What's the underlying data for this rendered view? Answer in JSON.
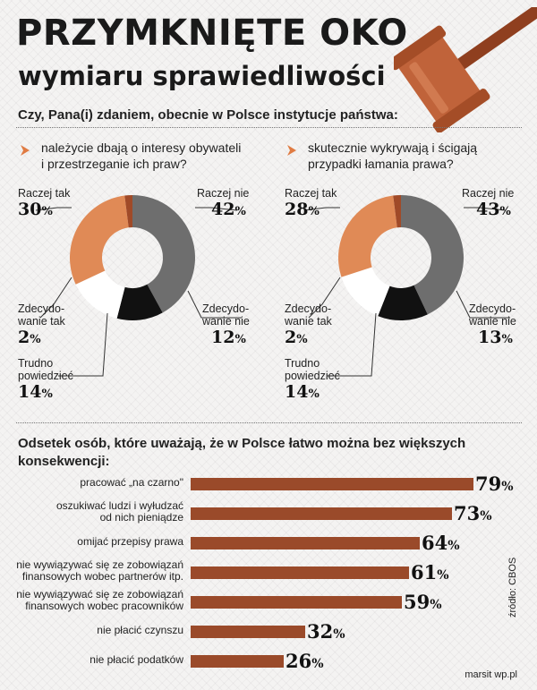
{
  "title_line1": "PRZYMKNIĘTE OKO",
  "title_line2": "wymiaru sprawiedliwości",
  "question": "Czy, Pana(i) zdaniem, obecnie w Polsce instytucje państwa:",
  "icons": {
    "chevron": "chevron-right-icon",
    "gavel": "gavel-icon"
  },
  "colors": {
    "orange": "#e08a56",
    "dark_gray": "#6e6e6e",
    "black": "#111111",
    "white": "#ffffff",
    "brown_mark": "#a04a28",
    "bar": "#9a4a2a"
  },
  "chart_data": [
    {
      "type": "pie",
      "subtitle": "należycie dbają o interesy obywateli\ni przestrzeganie ich praw?",
      "slices": [
        {
          "label": "Raczej nie",
          "value": 42
        },
        {
          "label": "Zdecydowanie nie",
          "value": 12
        },
        {
          "label": "Trudno powiedzieć",
          "value": 14
        },
        {
          "label": "Raczej tak",
          "value": 30
        },
        {
          "label": "Zdecydowanie tak",
          "value": 2
        }
      ],
      "labels": {
        "raczej_tak": "Raczej tak",
        "raczej_nie": "Raczej nie",
        "zdec_tak": "Zdecydo-\nwanie tak",
        "zdec_nie": "Zdecydo-\nwanie nie",
        "trudno": "Trudno\npowiedzieć"
      },
      "values": {
        "raczej_tak": "30",
        "raczej_nie": "42",
        "zdec_tak": "2",
        "zdec_nie": "12",
        "trudno": "14"
      }
    },
    {
      "type": "pie",
      "subtitle": "skutecznie wykrywają i ścigają\nprzypadki łamania prawa?",
      "slices": [
        {
          "label": "Raczej nie",
          "value": 43
        },
        {
          "label": "Zdecydowanie nie",
          "value": 13
        },
        {
          "label": "Trudno powiedzieć",
          "value": 14
        },
        {
          "label": "Raczej tak",
          "value": 28
        },
        {
          "label": "Zdecydowanie tak",
          "value": 2
        }
      ],
      "labels": {
        "raczej_tak": "Raczej tak",
        "raczej_nie": "Raczej nie",
        "zdec_tak": "Zdecydo-\nwanie tak",
        "zdec_nie": "Zdecydo-\nwanie nie",
        "trudno": "Trudno\npowiedzieć"
      },
      "values": {
        "raczej_tak": "28",
        "raczej_nie": "43",
        "zdec_tak": "2",
        "zdec_nie": "13",
        "trudno": "14"
      }
    },
    {
      "type": "bar",
      "title": "Odsetek osób, które uważają, że w Polsce łatwo można bez większych konsekwencji:",
      "categories": [
        "pracować „na czarno\"",
        "oszukiwać ludzi i wyłudzać\nod nich pieniądze",
        "omijać przepisy prawa",
        "nie wywiązywać się ze zobowiązań\nfinansowych wobec partnerów itp.",
        "nie wywiązywać się ze zobowiązań\nfinansowych wobec pracowników",
        "nie płacić czynszu",
        "nie płacić podatków"
      ],
      "values": [
        79,
        73,
        64,
        61,
        59,
        32,
        26
      ],
      "value_labels": [
        "79",
        "73",
        "64",
        "61",
        "59",
        "32",
        "26"
      ],
      "xlim": [
        0,
        100
      ]
    }
  ],
  "percent_sign": "%",
  "source": "źródło: CBOS",
  "credit": "marsit wp.pl"
}
